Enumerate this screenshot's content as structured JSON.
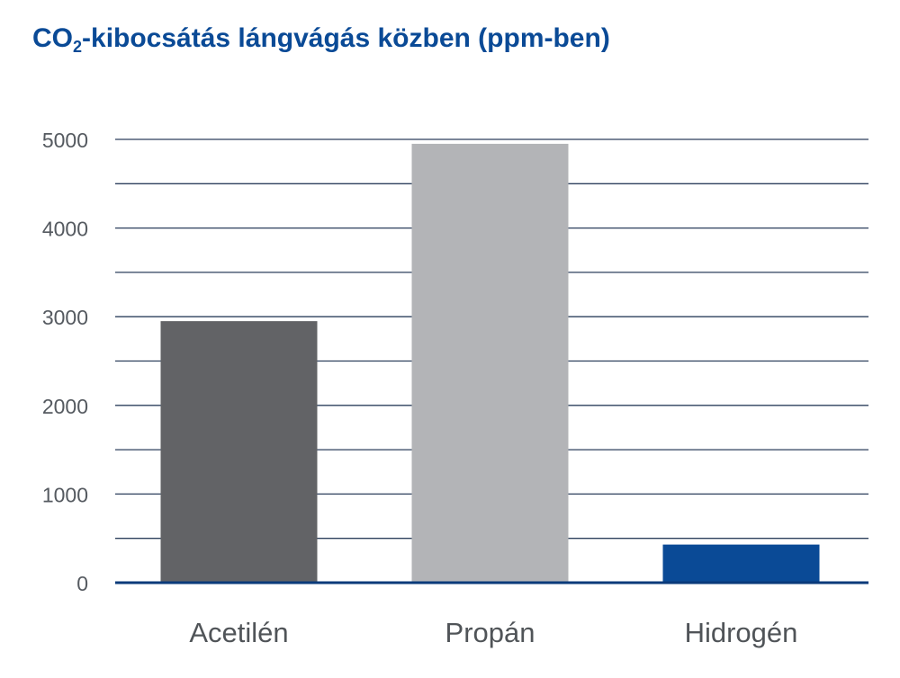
{
  "chart_data": {
    "type": "bar",
    "title_parts": [
      "CO",
      "2",
      "-kibocsátás lángvágás közben (ppm-ben)"
    ],
    "categories": [
      "Acetilén",
      "Propán",
      "Hidrogén"
    ],
    "values": [
      2950,
      4950,
      430
    ],
    "colors": [
      "#626366",
      "#b3b4b7",
      "#0a4a96"
    ],
    "ylim": [
      0,
      5000
    ],
    "yticks": [
      0,
      1000,
      2000,
      3000,
      4000,
      5000
    ],
    "ytick_labels": [
      "0",
      "1000",
      "2000",
      "3000",
      "4000",
      "5000"
    ],
    "minor_grid_step": 500,
    "grid": true,
    "grid_color": "#2c3f5c",
    "baseline_color": "#0a3a7a",
    "xlabel": "",
    "ylabel": ""
  }
}
